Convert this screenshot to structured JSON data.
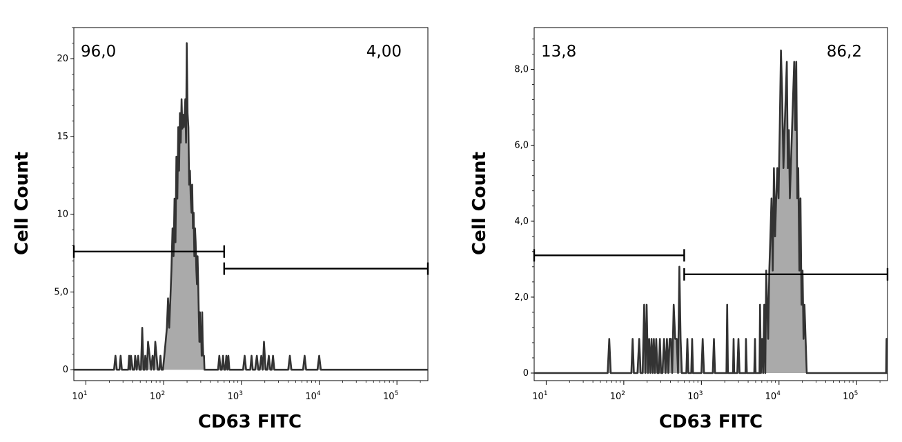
{
  "chart_data": [
    {
      "type": "area",
      "xlabel": "CD63 FITC",
      "ylabel": "Cell Count",
      "xscale": "log",
      "xlim": [
        7,
        250000
      ],
      "ylim": [
        -0.7,
        22
      ],
      "x_ticks": [
        {
          "base": "10",
          "exp": "1",
          "value": 10
        },
        {
          "base": "10",
          "exp": "2",
          "value": 100
        },
        {
          "base": "10",
          "exp": "3",
          "value": 1000
        },
        {
          "base": "10",
          "exp": "4",
          "value": 10000
        },
        {
          "base": "10",
          "exp": "5",
          "value": 100000
        }
      ],
      "y_ticks": [
        {
          "label": "0",
          "value": 0
        },
        {
          "label": "5,0",
          "value": 5
        },
        {
          "label": "10",
          "value": 10
        },
        {
          "label": "15",
          "value": 15
        },
        {
          "label": "20",
          "value": 20
        }
      ],
      "gates": [
        {
          "label": "96,0",
          "from": 7,
          "to": 600,
          "level": 7.6
        },
        {
          "label": "4,00",
          "from": 600,
          "to": 250000,
          "level": 6.5
        }
      ],
      "histogram": [
        [
          7,
          0
        ],
        [
          23,
          0
        ],
        [
          24,
          0.9
        ],
        [
          25,
          0
        ],
        [
          27,
          0
        ],
        [
          28,
          0.9
        ],
        [
          29,
          0
        ],
        [
          35,
          0
        ],
        [
          36,
          0.9
        ],
        [
          37,
          0
        ],
        [
          38,
          0.9
        ],
        [
          40,
          0
        ],
        [
          42,
          0
        ],
        [
          43,
          0.9
        ],
        [
          45,
          0
        ],
        [
          47,
          0.9
        ],
        [
          49,
          0
        ],
        [
          51,
          0
        ],
        [
          53,
          2.7
        ],
        [
          55,
          0
        ],
        [
          57,
          0
        ],
        [
          58,
          0.9
        ],
        [
          61,
          0
        ],
        [
          63,
          1.8
        ],
        [
          66,
          0.9
        ],
        [
          69,
          0
        ],
        [
          72,
          0.9
        ],
        [
          75,
          0
        ],
        [
          78,
          1.8
        ],
        [
          81,
          0.9
        ],
        [
          84,
          0
        ],
        [
          88,
          0
        ],
        [
          91,
          0.9
        ],
        [
          94,
          0
        ],
        [
          98,
          0
        ],
        [
          102,
          0.9
        ],
        [
          106,
          1.8
        ],
        [
          110,
          2.7
        ],
        [
          114,
          4.6
        ],
        [
          118,
          2.7
        ],
        [
          122,
          4.6
        ],
        [
          126,
          6.4
        ],
        [
          130,
          9.1
        ],
        [
          134,
          7.3
        ],
        [
          138,
          11.0
        ],
        [
          142,
          8.2
        ],
        [
          146,
          13.7
        ],
        [
          150,
          11.0
        ],
        [
          154,
          15.6
        ],
        [
          158,
          12.8
        ],
        [
          162,
          16.5
        ],
        [
          166,
          14.6
        ],
        [
          170,
          17.4
        ],
        [
          174,
          15.5
        ],
        [
          178,
          16.4
        ],
        [
          182,
          15.6
        ],
        [
          186,
          16.4
        ],
        [
          190,
          17.4
        ],
        [
          194,
          14.6
        ],
        [
          198,
          21.0
        ],
        [
          203,
          16.5
        ],
        [
          208,
          15.6
        ],
        [
          213,
          11.9
        ],
        [
          218,
          12.8
        ],
        [
          223,
          11.0
        ],
        [
          228,
          10.1
        ],
        [
          233,
          11.9
        ],
        [
          238,
          9.1
        ],
        [
          243,
          10.1
        ],
        [
          248,
          7.3
        ],
        [
          253,
          9.1
        ],
        [
          258,
          8.2
        ],
        [
          263,
          6.4
        ],
        [
          268,
          5.5
        ],
        [
          273,
          7.3
        ],
        [
          278,
          5.5
        ],
        [
          283,
          3.7
        ],
        [
          288,
          1.8
        ],
        [
          293,
          3.7
        ],
        [
          298,
          1.8
        ],
        [
          303,
          2.7
        ],
        [
          308,
          0.9
        ],
        [
          313,
          3.7
        ],
        [
          318,
          1.8
        ],
        [
          323,
          0.9
        ],
        [
          330,
          0.9
        ],
        [
          335,
          0
        ],
        [
          350,
          0
        ],
        [
          500,
          0
        ],
        [
          520,
          0.9
        ],
        [
          540,
          0
        ],
        [
          560,
          0
        ],
        [
          580,
          0.9
        ],
        [
          600,
          0
        ],
        [
          620,
          0
        ],
        [
          640,
          0.9
        ],
        [
          660,
          0
        ],
        [
          680,
          0.9
        ],
        [
          700,
          0
        ],
        [
          1050,
          0
        ],
        [
          1100,
          0.9
        ],
        [
          1150,
          0
        ],
        [
          1300,
          0
        ],
        [
          1350,
          0.9
        ],
        [
          1400,
          0
        ],
        [
          1500,
          0
        ],
        [
          1580,
          0.9
        ],
        [
          1650,
          0
        ],
        [
          1720,
          0
        ],
        [
          1800,
          0.9
        ],
        [
          1880,
          0
        ],
        [
          1950,
          1.8
        ],
        [
          2050,
          0
        ],
        [
          2150,
          0
        ],
        [
          2250,
          0.9
        ],
        [
          2350,
          0
        ],
        [
          2450,
          0
        ],
        [
          2550,
          0.9
        ],
        [
          2650,
          0
        ],
        [
          4000,
          0
        ],
        [
          4200,
          0.9
        ],
        [
          4400,
          0
        ],
        [
          6200,
          0
        ],
        [
          6500,
          0.9
        ],
        [
          6800,
          0
        ],
        [
          9500,
          0
        ],
        [
          10000,
          0.9
        ],
        [
          10500,
          0
        ],
        [
          250000,
          0
        ]
      ]
    },
    {
      "type": "area",
      "xlabel": "CD63 FITC",
      "ylabel": "Cell Count",
      "xscale": "log",
      "xlim": [
        7,
        250000
      ],
      "ylim": [
        -0.2,
        9.1
      ],
      "x_ticks": [
        {
          "base": "10",
          "exp": "1",
          "value": 10
        },
        {
          "base": "10",
          "exp": "2",
          "value": 100
        },
        {
          "base": "10",
          "exp": "3",
          "value": 1000
        },
        {
          "base": "10",
          "exp": "4",
          "value": 10000
        },
        {
          "base": "10",
          "exp": "5",
          "value": 100000
        }
      ],
      "y_ticks": [
        {
          "label": "0",
          "value": 0
        },
        {
          "label": "2,0",
          "value": 2
        },
        {
          "label": "4,0",
          "value": 4
        },
        {
          "label": "6,0",
          "value": 6
        },
        {
          "label": "8,0",
          "value": 8
        }
      ],
      "gates": [
        {
          "label": "13,8",
          "from": 7,
          "to": 600,
          "level": 3.1
        },
        {
          "label": "86,2",
          "from": 600,
          "to": 250000,
          "level": 2.6
        }
      ],
      "histogram": [
        [
          7,
          0
        ],
        [
          62,
          0
        ],
        [
          65,
          0.9
        ],
        [
          68,
          0
        ],
        [
          125,
          0
        ],
        [
          130,
          0.9
        ],
        [
          135,
          0
        ],
        [
          150,
          0
        ],
        [
          158,
          0.9
        ],
        [
          165,
          0
        ],
        [
          175,
          0
        ],
        [
          183,
          1.8
        ],
        [
          190,
          0
        ],
        [
          197,
          1.8
        ],
        [
          205,
          0
        ],
        [
          212,
          0.9
        ],
        [
          220,
          0
        ],
        [
          228,
          0.9
        ],
        [
          236,
          0
        ],
        [
          244,
          0.9
        ],
        [
          252,
          0
        ],
        [
          262,
          0.9
        ],
        [
          272,
          0
        ],
        [
          282,
          0
        ],
        [
          292,
          0.9
        ],
        [
          302,
          0
        ],
        [
          315,
          0
        ],
        [
          330,
          0.9
        ],
        [
          345,
          0
        ],
        [
          360,
          0.9
        ],
        [
          375,
          0
        ],
        [
          390,
          0.9
        ],
        [
          405,
          0.9
        ],
        [
          420,
          0
        ],
        [
          440,
          1.8
        ],
        [
          460,
          0.9
        ],
        [
          480,
          0.9
        ],
        [
          500,
          0
        ],
        [
          520,
          2.8
        ],
        [
          540,
          0.9
        ],
        [
          560,
          0
        ],
        [
          640,
          0
        ],
        [
          660,
          0.9
        ],
        [
          680,
          0
        ],
        [
          740,
          0
        ],
        [
          760,
          0.9
        ],
        [
          780,
          0
        ],
        [
          1000,
          0
        ],
        [
          1040,
          0.9
        ],
        [
          1080,
          0
        ],
        [
          1400,
          0
        ],
        [
          1450,
          0.9
        ],
        [
          1500,
          0
        ],
        [
          2100,
          0
        ],
        [
          2150,
          1.8
        ],
        [
          2200,
          0
        ],
        [
          2550,
          0
        ],
        [
          2600,
          0.9
        ],
        [
          2650,
          0
        ],
        [
          2900,
          0
        ],
        [
          3000,
          0.9
        ],
        [
          3100,
          0
        ],
        [
          3700,
          0
        ],
        [
          3750,
          0.9
        ],
        [
          3850,
          0
        ],
        [
          4800,
          0
        ],
        [
          4900,
          0.9
        ],
        [
          5000,
          0
        ],
        [
          5600,
          0
        ],
        [
          5700,
          1.8
        ],
        [
          5850,
          0
        ],
        [
          6050,
          0.9
        ],
        [
          6250,
          0
        ],
        [
          6450,
          1.8
        ],
        [
          6650,
          0
        ],
        [
          6850,
          2.7
        ],
        [
          7050,
          1.8
        ],
        [
          7250,
          0.9
        ],
        [
          7500,
          2.7
        ],
        [
          7750,
          3.6
        ],
        [
          8000,
          4.6
        ],
        [
          8300,
          2.7
        ],
        [
          8600,
          5.4
        ],
        [
          8900,
          3.6
        ],
        [
          9200,
          4.6
        ],
        [
          9500,
          5.4
        ],
        [
          9850,
          4.6
        ],
        [
          10200,
          6.4
        ],
        [
          10600,
          8.5
        ],
        [
          11000,
          7.3
        ],
        [
          11400,
          5.4
        ],
        [
          11800,
          6.4
        ],
        [
          12200,
          7.3
        ],
        [
          12600,
          8.2
        ],
        [
          13000,
          5.4
        ],
        [
          13400,
          6.4
        ],
        [
          13800,
          4.6
        ],
        [
          14200,
          5.4
        ],
        [
          14700,
          6.4
        ],
        [
          15200,
          7.3
        ],
        [
          15700,
          8.2
        ],
        [
          16200,
          6.4
        ],
        [
          16700,
          8.2
        ],
        [
          17200,
          4.6
        ],
        [
          17700,
          5.4
        ],
        [
          18300,
          2.7
        ],
        [
          18900,
          4.6
        ],
        [
          19500,
          1.8
        ],
        [
          20100,
          2.7
        ],
        [
          20700,
          0.9
        ],
        [
          21300,
          1.8
        ],
        [
          22000,
          0.9
        ],
        [
          22800,
          0
        ],
        [
          240000,
          0
        ],
        [
          243000,
          0.9
        ],
        [
          246000,
          0
        ],
        [
          250000,
          0
        ]
      ]
    }
  ]
}
